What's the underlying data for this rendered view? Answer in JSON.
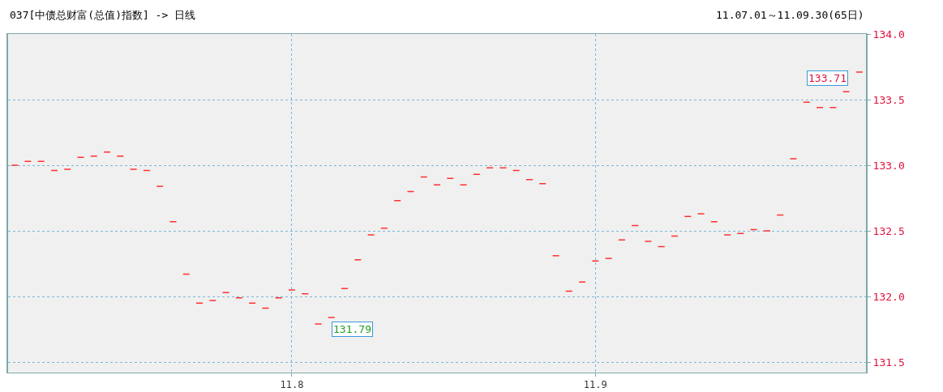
{
  "chart_data": {
    "type": "candlestick",
    "title": "037[中债总财富(总值)指数] -> 日线",
    "subtitle": "11.07.01～11.09.30(65日)",
    "categories": [
      null,
      null,
      null,
      null,
      null,
      null,
      null,
      null,
      null,
      null,
      null,
      null,
      null,
      null,
      null,
      null,
      null,
      null,
      null,
      null,
      null,
      "11.8",
      null,
      null,
      null,
      null,
      null,
      null,
      null,
      null,
      null,
      null,
      null,
      null,
      null,
      null,
      null,
      null,
      null,
      null,
      null,
      null,
      null,
      null,
      "11.9",
      null,
      null,
      null,
      null,
      null,
      null,
      null,
      null,
      null,
      null,
      null,
      null,
      null,
      null,
      null,
      null,
      null,
      null,
      null,
      null
    ],
    "ohlc": [
      [
        133.0,
        133.0,
        133.0,
        133.0
      ],
      [
        133.03,
        133.03,
        133.03,
        133.03
      ],
      [
        133.03,
        133.03,
        133.03,
        133.03
      ],
      [
        132.96,
        132.96,
        132.96,
        132.96
      ],
      [
        132.97,
        132.97,
        132.97,
        132.97
      ],
      [
        133.06,
        133.06,
        133.06,
        133.06
      ],
      [
        133.07,
        133.07,
        133.07,
        133.07
      ],
      [
        133.1,
        133.1,
        133.1,
        133.1
      ],
      [
        133.07,
        133.07,
        133.07,
        133.07
      ],
      [
        132.97,
        132.97,
        132.97,
        132.97
      ],
      [
        132.96,
        132.96,
        132.96,
        132.96
      ],
      [
        132.84,
        132.84,
        132.84,
        132.84
      ],
      [
        132.57,
        132.57,
        132.57,
        132.57
      ],
      [
        132.17,
        132.17,
        132.17,
        132.17
      ],
      [
        131.95,
        131.95,
        131.95,
        131.95
      ],
      [
        131.97,
        131.97,
        131.97,
        131.97
      ],
      [
        132.03,
        132.03,
        132.03,
        132.03
      ],
      [
        131.99,
        131.99,
        131.99,
        131.99
      ],
      [
        131.95,
        131.95,
        131.95,
        131.95
      ],
      [
        131.91,
        131.91,
        131.91,
        131.91
      ],
      [
        131.99,
        131.99,
        131.99,
        131.99
      ],
      [
        132.05,
        132.05,
        132.05,
        132.05
      ],
      [
        132.02,
        132.02,
        132.02,
        132.02
      ],
      [
        131.79,
        131.79,
        131.79,
        131.79
      ],
      [
        131.84,
        131.84,
        131.84,
        131.84
      ],
      [
        132.06,
        132.06,
        132.06,
        132.06
      ],
      [
        132.28,
        132.28,
        132.28,
        132.28
      ],
      [
        132.47,
        132.47,
        132.47,
        132.47
      ],
      [
        132.52,
        132.52,
        132.52,
        132.52
      ],
      [
        132.73,
        132.73,
        132.73,
        132.73
      ],
      [
        132.8,
        132.8,
        132.8,
        132.8
      ],
      [
        132.91,
        132.91,
        132.91,
        132.91
      ],
      [
        132.85,
        132.85,
        132.85,
        132.85
      ],
      [
        132.9,
        132.9,
        132.9,
        132.9
      ],
      [
        132.85,
        132.85,
        132.85,
        132.85
      ],
      [
        132.93,
        132.93,
        132.93,
        132.93
      ],
      [
        132.98,
        132.98,
        132.98,
        132.98
      ],
      [
        132.98,
        132.98,
        132.98,
        132.98
      ],
      [
        132.96,
        132.96,
        132.96,
        132.96
      ],
      [
        132.89,
        132.89,
        132.89,
        132.89
      ],
      [
        132.86,
        132.86,
        132.86,
        132.86
      ],
      [
        132.31,
        132.31,
        132.31,
        132.31
      ],
      [
        132.04,
        132.04,
        132.04,
        132.04
      ],
      [
        132.11,
        132.11,
        132.11,
        132.11
      ],
      [
        132.27,
        132.27,
        132.27,
        132.27
      ],
      [
        132.29,
        132.29,
        132.29,
        132.29
      ],
      [
        132.43,
        132.43,
        132.43,
        132.43
      ],
      [
        132.54,
        132.54,
        132.54,
        132.54
      ],
      [
        132.42,
        132.42,
        132.42,
        132.42
      ],
      [
        132.38,
        132.38,
        132.38,
        132.38
      ],
      [
        132.46,
        132.46,
        132.46,
        132.46
      ],
      [
        132.61,
        132.61,
        132.61,
        132.61
      ],
      [
        132.63,
        132.63,
        132.63,
        132.63
      ],
      [
        132.57,
        132.57,
        132.57,
        132.57
      ],
      [
        132.47,
        132.47,
        132.47,
        132.47
      ],
      [
        132.48,
        132.48,
        132.48,
        132.48
      ],
      [
        132.51,
        132.51,
        132.51,
        132.51
      ],
      [
        132.5,
        132.5,
        132.5,
        132.5
      ],
      [
        132.62,
        132.62,
        132.62,
        132.62
      ],
      [
        133.05,
        133.05,
        133.05,
        133.05
      ],
      [
        133.48,
        133.48,
        133.48,
        133.48
      ],
      [
        133.44,
        133.44,
        133.44,
        133.44
      ],
      [
        133.44,
        133.44,
        133.44,
        133.44
      ],
      [
        133.56,
        133.56,
        133.56,
        133.56
      ],
      [
        133.71,
        133.71,
        133.71,
        133.71
      ]
    ],
    "color": "#ff3030",
    "ylim": [
      131.42,
      134.0
    ],
    "yticks": [
      {
        "value": 131.5,
        "label": "131.5"
      },
      {
        "value": 132.0,
        "label": "132.0"
      },
      {
        "value": 132.5,
        "label": "132.5"
      },
      {
        "value": 133.0,
        "label": "133.0"
      },
      {
        "value": 133.5,
        "label": "133.5"
      },
      {
        "value": 134.0,
        "label": "134.0"
      }
    ],
    "grid": true,
    "annotations": [
      "133.71",
      "131.79"
    ]
  }
}
